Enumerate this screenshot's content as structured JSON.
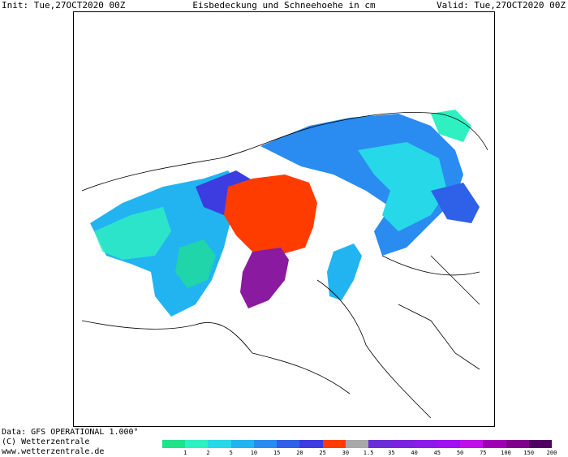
{
  "header": {
    "init": "Init: Tue,27OCT2020 00Z",
    "title": "Eisbedeckung und Schneehoehe in cm",
    "valid": "Valid: Tue,27OCT2020 00Z"
  },
  "footer": {
    "data_line": "Data: GFS OPERATIONAL 1.000°",
    "copyright": "(C) Wetterzentrale",
    "website": "www.wetterzentrale.de"
  },
  "legend": {
    "ticks": [
      {
        "label": "1",
        "color": "#1ee38a"
      },
      {
        "label": "2",
        "color": "#2ef0c0"
      },
      {
        "label": "5",
        "color": "#26d8e8"
      },
      {
        "label": "10",
        "color": "#22b4f0"
      },
      {
        "label": "15",
        "color": "#2a8cf0"
      },
      {
        "label": "20",
        "color": "#2f60e8"
      },
      {
        "label": "25",
        "color": "#3c3ce0"
      },
      {
        "label": "30",
        "color": "#ff3c00"
      },
      {
        "label": "1.5",
        "color": "#a8a8a8"
      },
      {
        "label": "35",
        "color": "#6a2ed8"
      },
      {
        "label": "40",
        "color": "#7a22e0"
      },
      {
        "label": "45",
        "color": "#8c1ae8"
      },
      {
        "label": "50",
        "color": "#a010f0"
      },
      {
        "label": "75",
        "color": "#c010e8"
      },
      {
        "label": "100",
        "color": "#a000b4"
      },
      {
        "label": "150",
        "color": "#80008c"
      },
      {
        "label": "200",
        "color": "#500060"
      }
    ]
  },
  "colors": {
    "sea_ice": "#ff3c00",
    "greenland_snow": "#8a1aa0",
    "border": "#000000"
  }
}
